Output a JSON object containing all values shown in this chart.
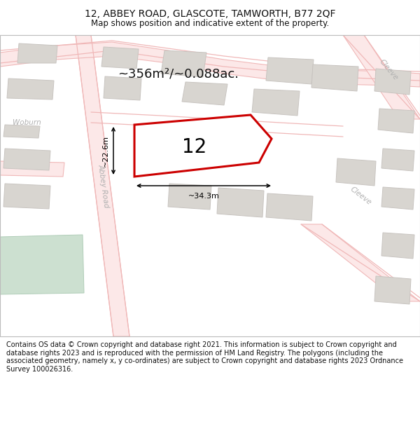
{
  "title": "12, ABBEY ROAD, GLASCOTE, TAMWORTH, B77 2QF",
  "subtitle": "Map shows position and indicative extent of the property.",
  "area_label": "~356m²/~0.088ac.",
  "property_number": "12",
  "dim_width": "~34.3m",
  "dim_height": "~22.6m",
  "footer": "Contains OS data © Crown copyright and database right 2021. This information is subject to Crown copyright and database rights 2023 and is reproduced with the permission of HM Land Registry. The polygons (including the associated geometry, namely x, y co-ordinates) are subject to Crown copyright and database rights 2023 Ordnance Survey 100026316.",
  "bg_color": "#f2f0ed",
  "road_color": "#f0b8b8",
  "road_fill": "#fce8e8",
  "building_fill": "#d8d5d0",
  "building_edge": "#c8c4c0",
  "green_fill": "#cce0d0",
  "green_edge": "#b0cdb8",
  "property_edge": "#cc0000",
  "property_fill": "#ffffff",
  "arrow_color": "#111111",
  "text_color": "#111111",
  "road_label_color": "#b0b0b0",
  "title_fontsize": 10,
  "subtitle_fontsize": 8.5,
  "label_fontsize": 13,
  "num_fontsize": 20,
  "footer_fontsize": 7.0,
  "road_label_fontsize": 7.5
}
